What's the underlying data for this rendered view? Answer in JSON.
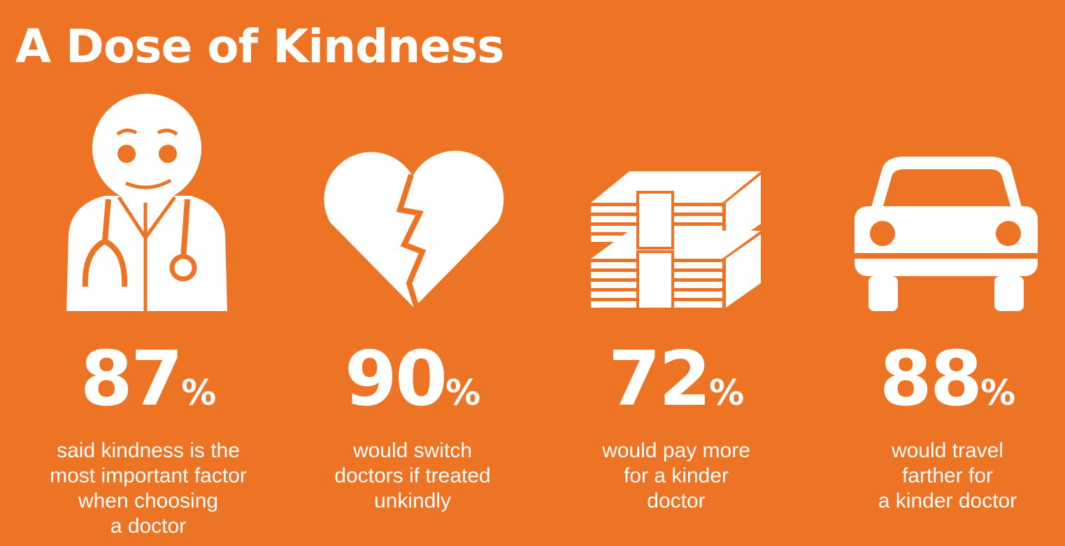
{
  "title": "A Dose of Kindness",
  "stats": [
    {
      "number": 87,
      "unit": "%",
      "caption": [
        "said kindness is the",
        "most important factor",
        "when choosing",
        "a doctor"
      ]
    },
    {
      "number": 90,
      "unit": "%",
      "caption": [
        "would switch",
        "doctors if treated",
        "unkindly"
      ]
    },
    {
      "number": 72,
      "unit": "%",
      "caption": [
        "would pay more",
        "for a kinder",
        "doctor"
      ]
    },
    {
      "number": 88,
      "unit": "%",
      "caption": [
        "would travel",
        "farther for",
        "a kinder doctor"
      ]
    }
  ]
}
